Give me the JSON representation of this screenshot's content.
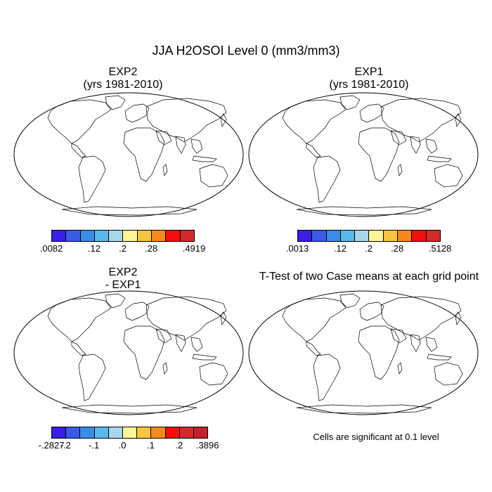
{
  "main_title": "JJA H2OSOI Level 0 (mm3/mm3)",
  "panels": {
    "exp2": {
      "title_line1": "EXP2",
      "title_line2": "(yrs 1981-2010)"
    },
    "exp1": {
      "title_line1": "EXP1",
      "title_line2": "(yrs 1981-2010)"
    },
    "diff": {
      "title_line1": "EXP2",
      "title_line2": "- EXP1"
    },
    "ttest": {
      "title_line1": "T-Test of two Case means at each grid point"
    }
  },
  "colorbars": {
    "exp2": {
      "colors": [
        "#3a1fe6",
        "#3a5ae8",
        "#3b8ce6",
        "#5ab8ea",
        "#a8d6ea",
        "#fdf597",
        "#f7c640",
        "#f58a1a",
        "#f20f0c",
        "#d52a2a"
      ],
      "ticks": [
        ".0082",
        ".12",
        ".2",
        ".28",
        ".4919"
      ],
      "tick_index": [
        0,
        3,
        5,
        7,
        10
      ]
    },
    "exp1": {
      "colors": [
        "#3a1fe6",
        "#3a5ae8",
        "#3b8ce6",
        "#5ab8ea",
        "#a8d6ea",
        "#fdf597",
        "#f7c640",
        "#f58a1a",
        "#f20f0c",
        "#d52a2a"
      ],
      "ticks": [
        ".0013",
        ".12",
        ".2",
        ".28",
        ".5128"
      ],
      "tick_index": [
        0,
        3,
        5,
        7,
        10
      ]
    },
    "diff": {
      "colors": [
        "#3a1fe6",
        "#3a5ae8",
        "#3b8ce6",
        "#5ab8ea",
        "#a8d6ea",
        "#fdf597",
        "#f7c640",
        "#f58a1a",
        "#f20f0c",
        "#d52a2a",
        "#c8202a"
      ],
      "ticks": [
        "-.2827",
        "-.2",
        "-.1",
        ".0",
        ".1",
        ".2",
        ".3896"
      ],
      "tick_index": [
        0,
        1,
        3,
        5,
        7,
        9,
        11
      ]
    }
  },
  "ttest_note": "Cells are significant at 0.1 level",
  "colors": {
    "ocean": "#ffffff",
    "significant": "#ee0a0a",
    "diff_land": "#fbf59a",
    "diff_blue": "#a8d8ea"
  }
}
